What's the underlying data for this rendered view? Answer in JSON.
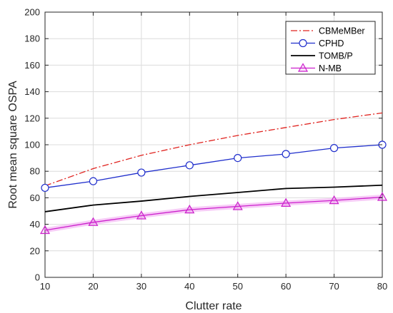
{
  "chart_data": {
    "type": "line",
    "xlabel": "Clutter rate",
    "ylabel": "Root mean square OSPA",
    "xlim": [
      10,
      80
    ],
    "ylim": [
      0,
      200
    ],
    "x_ticks": [
      10,
      20,
      30,
      40,
      50,
      60,
      70,
      80
    ],
    "y_ticks": [
      0,
      20,
      40,
      60,
      80,
      100,
      120,
      140,
      160,
      180,
      200
    ],
    "grid": true,
    "legend_position": "top-right",
    "x": [
      10,
      20,
      30,
      40,
      50,
      60,
      70,
      80
    ],
    "series": [
      {
        "name": "CBMeMBer",
        "values": [
          69,
          82,
          92,
          100,
          107,
          113,
          119,
          124
        ],
        "color": "#e0231f",
        "line": "dashdot",
        "marker": "none"
      },
      {
        "name": "CPHD",
        "values": [
          67.5,
          72.5,
          79,
          84.5,
          90,
          93,
          97.5,
          100
        ],
        "color": "#1f2ecc",
        "line": "solid",
        "marker": "circle"
      },
      {
        "name": "TOMB/P",
        "values": [
          49.5,
          54.5,
          57.5,
          61,
          64,
          67,
          68,
          69.5
        ],
        "color": "#000000",
        "line": "solid",
        "marker": "none"
      },
      {
        "name": "N-MB",
        "values": [
          35.5,
          41.5,
          46.5,
          51,
          53.5,
          56,
          58,
          60.5
        ],
        "color": "#cc1fcc",
        "line": "solid",
        "marker": "triangle"
      }
    ]
  }
}
